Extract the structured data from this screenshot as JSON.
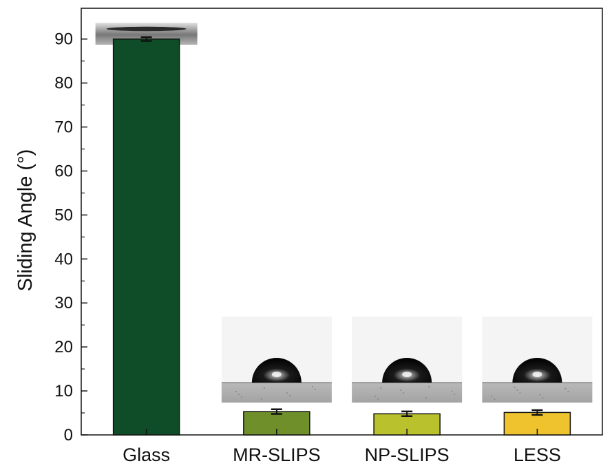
{
  "chart_data": {
    "type": "bar",
    "categories": [
      "Glass",
      "MR-SLIPS",
      "NP-SLIPS",
      "LESS"
    ],
    "values": [
      90,
      5.3,
      4.8,
      5.1
    ],
    "errors": [
      0.2,
      0.3,
      0.3,
      0.3
    ],
    "ylabel": "Sliding Angle (°)",
    "xlabel": "",
    "ylim": [
      0,
      97
    ],
    "yticks": [
      0,
      10,
      20,
      30,
      40,
      50,
      60,
      70,
      80,
      90
    ],
    "grid": false,
    "colors": [
      "#0f4d28",
      "#6f8f2a",
      "#b9c22c",
      "#eec32d"
    ],
    "droplet_photos": [
      {
        "category": "Glass",
        "description": "flat spread droplet",
        "color": "#555555"
      },
      {
        "category": "MR-SLIPS",
        "description": "beaded droplet",
        "color": "#111111"
      },
      {
        "category": "NP-SLIPS",
        "description": "beaded droplet",
        "color": "#111111"
      },
      {
        "category": "LESS",
        "description": "beaded droplet",
        "color": "#111111"
      }
    ]
  }
}
